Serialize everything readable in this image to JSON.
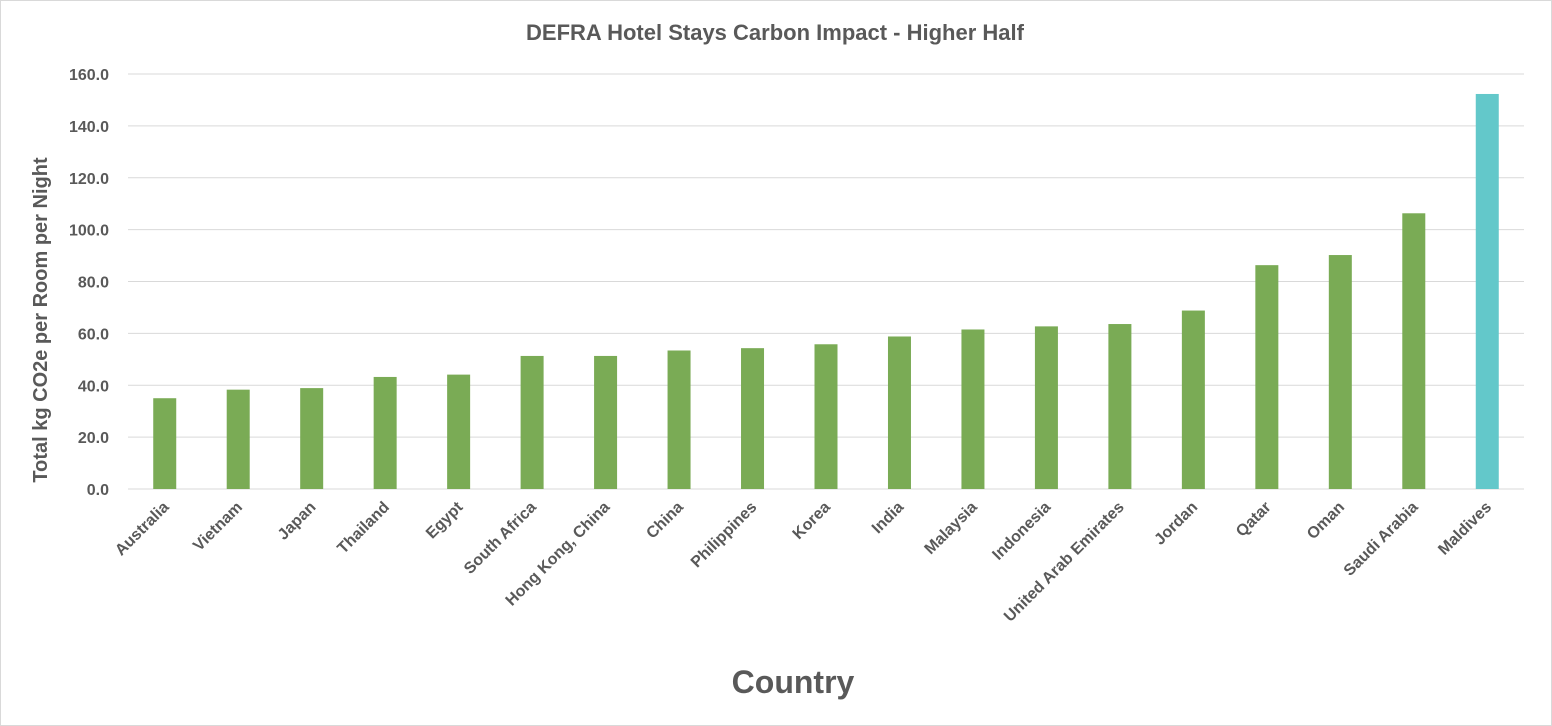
{
  "chart_data": {
    "type": "bar",
    "title": "DEFRA Hotel Stays Carbon Impact - Higher Half",
    "xlabel": "Country",
    "ylabel": "Total kg CO2e per Room per Night",
    "ylim": [
      0,
      160
    ],
    "yticks": [
      "0.0",
      "20.0",
      "40.0",
      "60.0",
      "80.0",
      "100.0",
      "120.0",
      "140.0",
      "160.0"
    ],
    "grid": true,
    "categories": [
      "Australia",
      "Vietnam",
      "Japan",
      "Thailand",
      "Egypt",
      "South Africa",
      "Hong Kong, China",
      "China",
      "Philippines",
      "Korea",
      "India",
      "Malaysia",
      "Indonesia",
      "United Arab Emirates",
      "Jordan",
      "Qatar",
      "Oman",
      "Saudi Arabia",
      "Maldives"
    ],
    "values": [
      35.0,
      38.3,
      38.9,
      43.2,
      44.1,
      51.3,
      51.3,
      53.4,
      54.3,
      55.8,
      58.8,
      61.5,
      62.7,
      63.6,
      68.8,
      86.3,
      90.2,
      106.3,
      152.3
    ],
    "colors": [
      "#7aab55",
      "#7aab55",
      "#7aab55",
      "#7aab55",
      "#7aab55",
      "#7aab55",
      "#7aab55",
      "#7aab55",
      "#7aab55",
      "#7aab55",
      "#7aab55",
      "#7aab55",
      "#7aab55",
      "#7aab55",
      "#7aab55",
      "#7aab55",
      "#7aab55",
      "#7aab55",
      "#63c8ca"
    ]
  }
}
